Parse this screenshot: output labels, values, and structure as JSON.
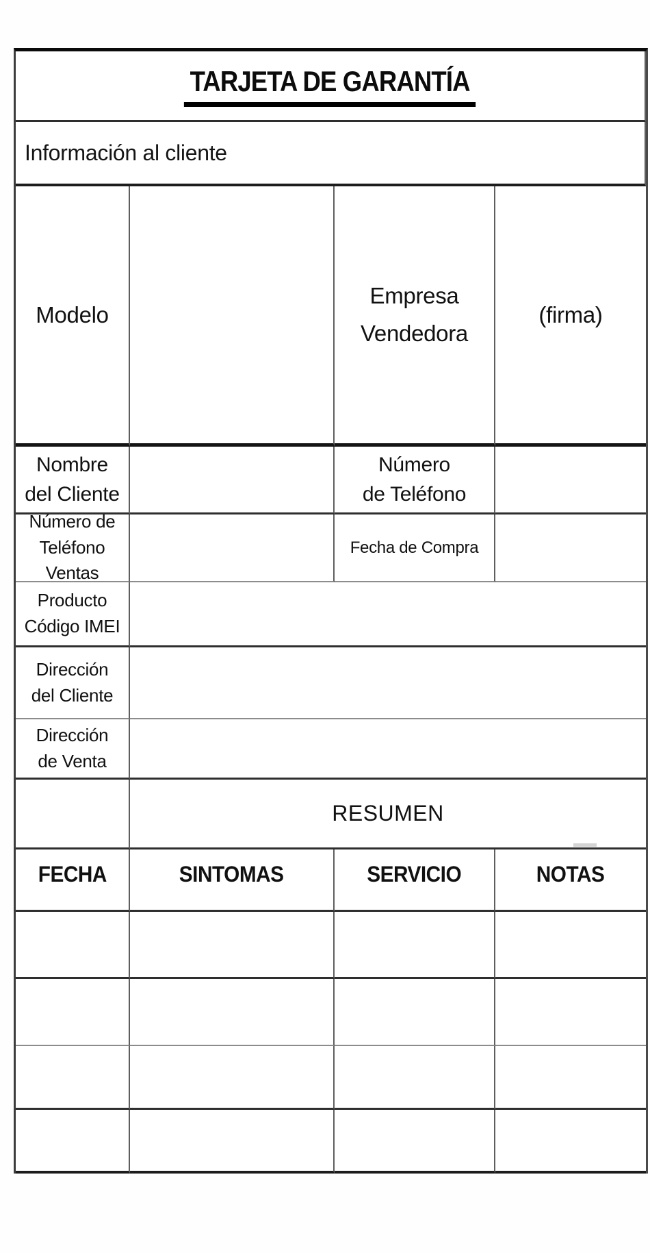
{
  "document": {
    "title": "TARJETA DE GARANTÍA",
    "customer_info_label": "Información al cliente",
    "fields": {
      "modelo": "Modelo",
      "empresa_vendedora": "Empresa\nVendedora",
      "firma": "(firma)",
      "nombre_cliente": "Nombre\ndel Cliente",
      "numero_telefono": "Número\nde Teléfono",
      "numero_telefono_ventas": "Número de\nTeléfono Ventas",
      "fecha_compra": "Fecha de Compra",
      "producto_codigo_imei": "Producto\nCódigo IMEI",
      "direccion_cliente": "Dirección\ndel Cliente",
      "direccion_venta": "Dirección\nde Venta"
    },
    "resumen": {
      "title": "RESUMEN",
      "headers": [
        "FECHA",
        "SINTOMAS",
        "SERVICIO",
        "NOTAS"
      ],
      "empty_row_count": 4
    }
  }
}
